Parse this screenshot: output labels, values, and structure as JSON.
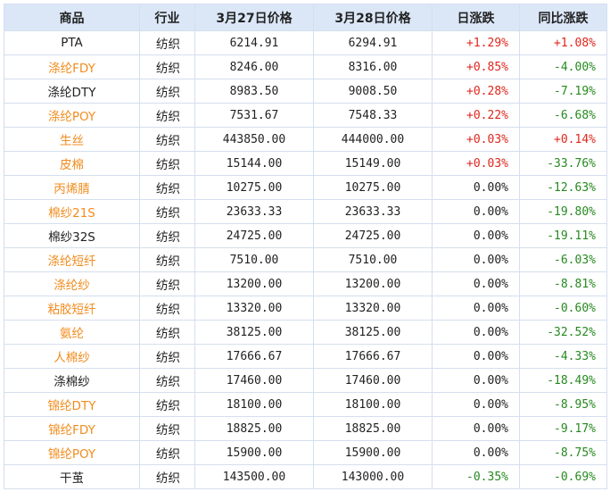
{
  "headers": [
    "商品",
    "行业",
    "3月27日价格",
    "3月28日价格",
    "日涨跌",
    "同比涨跌"
  ],
  "rows": [
    {
      "name": "PTA",
      "name_color": "#222222",
      "industry": "纺织",
      "price_0327": "6214.91",
      "price_0328": "6294.91",
      "day_change": "+1.29%",
      "day_dir": "up",
      "yoy_change": "+1.08%",
      "yoy_dir": "up"
    },
    {
      "name": "涤纶FDY",
      "name_color": "#f28c1e",
      "industry": "纺织",
      "price_0327": "8246.00",
      "price_0328": "8316.00",
      "day_change": "+0.85%",
      "day_dir": "up",
      "yoy_change": "-4.00%",
      "yoy_dir": "down"
    },
    {
      "name": "涤纶DTY",
      "name_color": "#222222",
      "industry": "纺织",
      "price_0327": "8983.50",
      "price_0328": "9008.50",
      "day_change": "+0.28%",
      "day_dir": "up",
      "yoy_change": "-7.19%",
      "yoy_dir": "down"
    },
    {
      "name": "涤纶POY",
      "name_color": "#f28c1e",
      "industry": "纺织",
      "price_0327": "7531.67",
      "price_0328": "7548.33",
      "day_change": "+0.22%",
      "day_dir": "up",
      "yoy_change": "-6.68%",
      "yoy_dir": "down"
    },
    {
      "name": "生丝",
      "name_color": "#f28c1e",
      "industry": "纺织",
      "price_0327": "443850.00",
      "price_0328": "444000.00",
      "day_change": "+0.03%",
      "day_dir": "up",
      "yoy_change": "+0.14%",
      "yoy_dir": "up"
    },
    {
      "name": "皮棉",
      "name_color": "#f28c1e",
      "industry": "纺织",
      "price_0327": "15144.00",
      "price_0328": "15149.00",
      "day_change": "+0.03%",
      "day_dir": "up",
      "yoy_change": "-33.76%",
      "yoy_dir": "down"
    },
    {
      "name": "丙烯腈",
      "name_color": "#f28c1e",
      "industry": "纺织",
      "price_0327": "10275.00",
      "price_0328": "10275.00",
      "day_change": "0.00%",
      "day_dir": "flat",
      "yoy_change": "-12.63%",
      "yoy_dir": "down"
    },
    {
      "name": "棉纱21S",
      "name_color": "#f28c1e",
      "industry": "纺织",
      "price_0327": "23633.33",
      "price_0328": "23633.33",
      "day_change": "0.00%",
      "day_dir": "flat",
      "yoy_change": "-19.80%",
      "yoy_dir": "down"
    },
    {
      "name": "棉纱32S",
      "name_color": "#222222",
      "industry": "纺织",
      "price_0327": "24725.00",
      "price_0328": "24725.00",
      "day_change": "0.00%",
      "day_dir": "flat",
      "yoy_change": "-19.11%",
      "yoy_dir": "down"
    },
    {
      "name": "涤纶短纤",
      "name_color": "#f28c1e",
      "industry": "纺织",
      "price_0327": "7510.00",
      "price_0328": "7510.00",
      "day_change": "0.00%",
      "day_dir": "flat",
      "yoy_change": "-6.03%",
      "yoy_dir": "down"
    },
    {
      "name": "涤纶纱",
      "name_color": "#f28c1e",
      "industry": "纺织",
      "price_0327": "13200.00",
      "price_0328": "13200.00",
      "day_change": "0.00%",
      "day_dir": "flat",
      "yoy_change": "-8.81%",
      "yoy_dir": "down"
    },
    {
      "name": "粘胶短纤",
      "name_color": "#f28c1e",
      "industry": "纺织",
      "price_0327": "13320.00",
      "price_0328": "13320.00",
      "day_change": "0.00%",
      "day_dir": "flat",
      "yoy_change": "-0.60%",
      "yoy_dir": "down"
    },
    {
      "name": "氨纶",
      "name_color": "#f28c1e",
      "industry": "纺织",
      "price_0327": "38125.00",
      "price_0328": "38125.00",
      "day_change": "0.00%",
      "day_dir": "flat",
      "yoy_change": "-32.52%",
      "yoy_dir": "down"
    },
    {
      "name": "人棉纱",
      "name_color": "#f28c1e",
      "industry": "纺织",
      "price_0327": "17666.67",
      "price_0328": "17666.67",
      "day_change": "0.00%",
      "day_dir": "flat",
      "yoy_change": "-4.33%",
      "yoy_dir": "down"
    },
    {
      "name": "涤棉纱",
      "name_color": "#222222",
      "industry": "纺织",
      "price_0327": "17460.00",
      "price_0328": "17460.00",
      "day_change": "0.00%",
      "day_dir": "flat",
      "yoy_change": "-18.49%",
      "yoy_dir": "down"
    },
    {
      "name": "锦纶DTY",
      "name_color": "#f28c1e",
      "industry": "纺织",
      "price_0327": "18100.00",
      "price_0328": "18100.00",
      "day_change": "0.00%",
      "day_dir": "flat",
      "yoy_change": "-8.95%",
      "yoy_dir": "down"
    },
    {
      "name": "锦纶FDY",
      "name_color": "#f28c1e",
      "industry": "纺织",
      "price_0327": "18825.00",
      "price_0328": "18825.00",
      "day_change": "0.00%",
      "day_dir": "flat",
      "yoy_change": "-9.17%",
      "yoy_dir": "down"
    },
    {
      "name": "锦纶POY",
      "name_color": "#f28c1e",
      "industry": "纺织",
      "price_0327": "15900.00",
      "price_0328": "15900.00",
      "day_change": "0.00%",
      "day_dir": "flat",
      "yoy_change": "-8.75%",
      "yoy_dir": "down"
    },
    {
      "name": "干茧",
      "name_color": "#222222",
      "industry": "纺织",
      "price_0327": "143500.00",
      "price_0328": "143000.00",
      "day_change": "-0.35%",
      "day_dir": "down",
      "yoy_change": "-0.69%",
      "yoy_dir": "down"
    }
  ],
  "colors": {
    "header_bg": "#dbe7f7",
    "grid": "#d4dfee",
    "link_orange": "#f28c1e",
    "up_red": "#e0261c",
    "down_green": "#26891f"
  }
}
